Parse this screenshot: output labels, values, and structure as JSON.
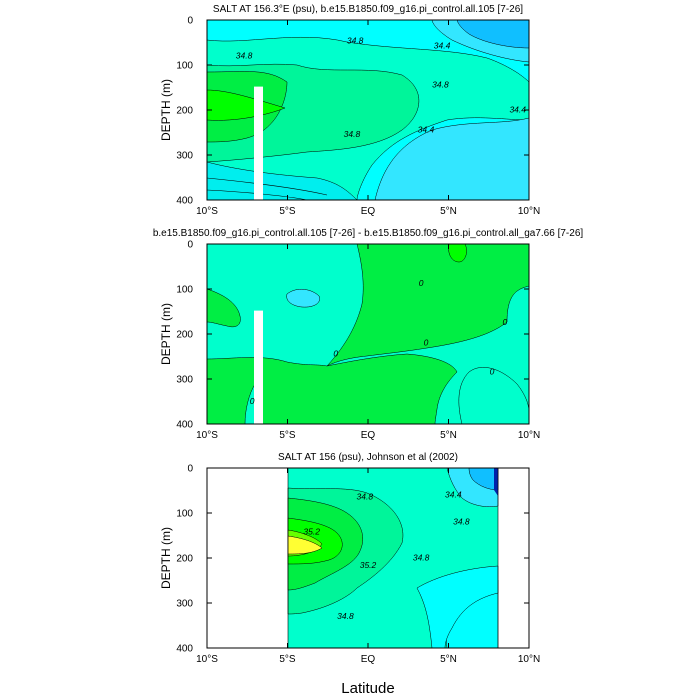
{
  "figure": {
    "xlabel": "Latitude"
  },
  "colors": {
    "cyan": "#00FFFF",
    "light_cyan": "#00EEEE",
    "sky": "#33E6FF",
    "deep_sky": "#10BFFF",
    "aqua_green": "#00FFCC",
    "mint": "#00F59A",
    "green": "#00EE44",
    "bright_green": "#00FF00",
    "lime": "#66FF00",
    "yellow": "#FFFF33",
    "blue_dark": "#0022AA",
    "contour": "#000000",
    "mask": "#FFFFFF"
  },
  "chart_data": [
    {
      "type": "contour",
      "title": "SALT AT 156.3°E (psu), b.e15.B1850.f09_g16.pi_control.all.105 [7-26]",
      "xlabel": "",
      "ylabel": "DEPTH (m)",
      "xlim": [
        -10,
        10
      ],
      "ylim": [
        400,
        0
      ],
      "x_ticks": [
        -10,
        -5,
        0,
        5,
        10
      ],
      "x_tick_labels": [
        "10°S",
        "5°S",
        "EQ",
        "5°N",
        "10°N"
      ],
      "y_ticks": [
        0,
        100,
        200,
        300,
        400
      ],
      "y_tick_labels": [
        "0",
        "100",
        "200",
        "300",
        "400"
      ],
      "contour_labels": [
        {
          "text": "34.8",
          "x": -7.7,
          "y": 85
        },
        {
          "text": "34.8",
          "x": -0.8,
          "y": 52
        },
        {
          "text": "34.4",
          "x": 4.6,
          "y": 63
        },
        {
          "text": "34.8",
          "x": 4.5,
          "y": 150
        },
        {
          "text": "34.8",
          "x": -1.0,
          "y": 260
        },
        {
          "text": "34.4",
          "x": 3.6,
          "y": 250
        },
        {
          "text": "34.4",
          "x": 9.3,
          "y": 205
        }
      ],
      "mask": {
        "x_from": -6.95,
        "x_to": -6.4,
        "y_from": 148,
        "y_to": 400
      }
    },
    {
      "type": "contour",
      "title": "b.e15.B1850.f09_g16.pi_control.all.105 [7-26] - b.e15.B1850.f09_g16.pi_control.all_ga7.66 [7-26]",
      "xlabel": "",
      "ylabel": "DEPTH (m)",
      "xlim": [
        -10,
        10
      ],
      "ylim": [
        400,
        0
      ],
      "x_ticks": [
        -10,
        -5,
        0,
        5,
        10
      ],
      "x_tick_labels": [
        "10°S",
        "5°S",
        "EQ",
        "5°N",
        "10°N"
      ],
      "y_ticks": [
        0,
        100,
        200,
        300,
        400
      ],
      "y_tick_labels": [
        "0",
        "100",
        "200",
        "300",
        "400"
      ],
      "contour_labels": [
        {
          "text": "0",
          "x": 3.3,
          "y": 93
        },
        {
          "text": "0",
          "x": 8.5,
          "y": 180
        },
        {
          "text": "0",
          "x": -2.0,
          "y": 250
        },
        {
          "text": "0",
          "x": 3.6,
          "y": 225
        },
        {
          "text": "0",
          "x": 7.7,
          "y": 290
        },
        {
          "text": "0",
          "x": -7.2,
          "y": 355
        }
      ],
      "mask": {
        "x_from": -6.95,
        "x_to": -6.4,
        "y_from": 148,
        "y_to": 400
      }
    },
    {
      "type": "contour",
      "title": "SALT AT 156 (psu), Johnson et al (2002)",
      "xlabel": "",
      "ylabel": "DEPTH (m)",
      "xlim": [
        -10,
        10
      ],
      "ylim": [
        400,
        0
      ],
      "x_ticks": [
        -10,
        -5,
        0,
        5,
        10
      ],
      "x_tick_labels": [
        "10°S",
        "5°S",
        "EQ",
        "5°N",
        "10°N"
      ],
      "y_ticks": [
        0,
        100,
        200,
        300,
        400
      ],
      "y_tick_labels": [
        "0",
        "100",
        "200",
        "300",
        "400"
      ],
      "data_extent_x": [
        -5,
        8
      ],
      "contour_labels": [
        {
          "text": "34.8",
          "x": -0.2,
          "y": 70
        },
        {
          "text": "34.4",
          "x": 5.3,
          "y": 65
        },
        {
          "text": "34.8",
          "x": 5.8,
          "y": 125
        },
        {
          "text": "35.2",
          "x": -3.5,
          "y": 148
        },
        {
          "text": "35.2",
          "x": 0.0,
          "y": 222
        },
        {
          "text": "34.8",
          "x": 3.3,
          "y": 205
        },
        {
          "text": "34.8",
          "x": -1.4,
          "y": 335
        }
      ]
    }
  ]
}
